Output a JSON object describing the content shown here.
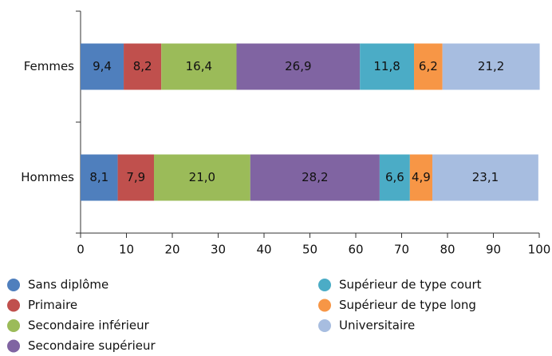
{
  "chart_data": {
    "type": "stacked_barh",
    "categories": [
      "Femmes",
      "Hommes"
    ],
    "series": [
      {
        "name": "Sans diplôme",
        "color": "#4f7fbd",
        "values": [
          9.4,
          8.1
        ],
        "value_labels": [
          "9,4",
          "8,1"
        ]
      },
      {
        "name": "Primaire",
        "color": "#c0504d",
        "values": [
          8.2,
          7.9
        ],
        "value_labels": [
          "8,2",
          "7,9"
        ]
      },
      {
        "name": "Secondaire inférieur",
        "color": "#9bbb59",
        "values": [
          16.4,
          21.0
        ],
        "value_labels": [
          "16,4",
          "21,0"
        ]
      },
      {
        "name": "Secondaire supérieur",
        "color": "#8064a2",
        "values": [
          26.9,
          28.2
        ],
        "value_labels": [
          "26,9",
          "28,2"
        ]
      },
      {
        "name": "Supérieur de type court",
        "color": "#4bacc6",
        "values": [
          11.8,
          6.6
        ],
        "value_labels": [
          "11,8",
          "6,6"
        ]
      },
      {
        "name": "Supérieur de type long",
        "color": "#f79646",
        "values": [
          6.2,
          4.9
        ],
        "value_labels": [
          "6,2",
          "4,9"
        ]
      },
      {
        "name": "Universitaire",
        "color": "#a7bde0",
        "values": [
          21.2,
          23.1
        ],
        "value_labels": [
          "21,2",
          "23,1"
        ]
      }
    ],
    "xlim": [
      0,
      100
    ],
    "xticks": [
      0,
      10,
      20,
      30,
      40,
      50,
      60,
      70,
      80,
      90,
      100
    ]
  }
}
